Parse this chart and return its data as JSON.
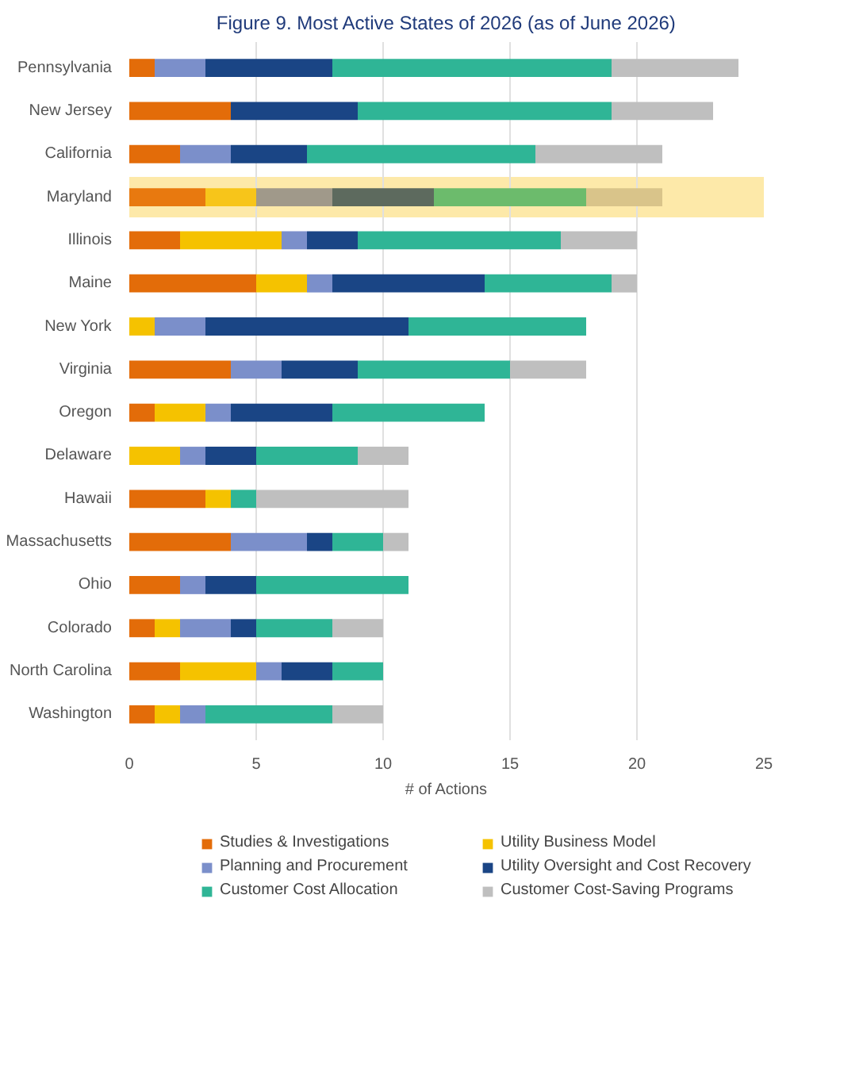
{
  "chart_data": {
    "type": "bar",
    "orientation": "horizontal",
    "stacked": true,
    "title": "Figure 9. Most Active States of 2026 (as of June 2026)",
    "xlabel": "# of Actions",
    "categories": [
      "Pennsylvania",
      "New Jersey",
      "California",
      "Maryland",
      "Illinois",
      "Maine",
      "New York",
      "Virginia",
      "Oregon",
      "Delaware",
      "Hawaii",
      "Massachusetts",
      "Ohio",
      "Colorado",
      "North Carolina",
      "Washington"
    ],
    "series": [
      {
        "name": "Studies & Investigations",
        "color": "#e36c09",
        "colors": [
          "#e36c09",
          "#e36c09",
          "#e36c09",
          "#e8790f",
          "#e36c09",
          "#e36c09",
          "#e36c09",
          "#e36c09",
          "#e36c09",
          "#e36c09",
          "#e36c09",
          "#e36c09",
          "#e36c09",
          "#e36c09",
          "#e36c09",
          "#e36c09"
        ],
        "values": [
          1,
          4,
          2,
          3,
          2,
          5,
          0,
          4,
          1,
          0,
          3,
          4,
          2,
          1,
          2,
          1
        ]
      },
      {
        "name": "Utility Business Model",
        "color": "#f5c200",
        "colors": [
          "#f5c200",
          "#f5c200",
          "#f5c200",
          "#f7c51a",
          "#f5c200",
          "#f5c200",
          "#f5c200",
          "#f5c200",
          "#f5c200",
          "#f5c200",
          "#f5c200",
          "#f5c200",
          "#f5c200",
          "#f5c200",
          "#f5c200",
          "#f5c200"
        ],
        "values": [
          0,
          0,
          0,
          2,
          4,
          2,
          1,
          0,
          2,
          2,
          1,
          0,
          0,
          1,
          3,
          1
        ]
      },
      {
        "name": "Planning and Procurement",
        "color": "#7b8fca",
        "colors": [
          "#7b8fca",
          "#7b8fca",
          "#7b8fca",
          "#a0998a",
          "#7b8fca",
          "#7b8fca",
          "#7b8fca",
          "#7b8fca",
          "#7b8fca",
          "#7b8fca",
          "#7b8fca",
          "#7b8fca",
          "#7b8fca",
          "#7b8fca",
          "#7b8fca",
          "#7b8fca"
        ],
        "values": [
          2,
          0,
          2,
          3,
          1,
          1,
          2,
          2,
          1,
          1,
          0,
          3,
          1,
          2,
          1,
          1
        ]
      },
      {
        "name": "Utility Oversight and Cost Recovery",
        "color": "#1a4585",
        "colors": [
          "#1a4585",
          "#1a4585",
          "#1a4585",
          "#5d6a5e",
          "#1a4585",
          "#1a4585",
          "#1a4585",
          "#1a4585",
          "#1a4585",
          "#1a4585",
          "#1a4585",
          "#1a4585",
          "#1a4585",
          "#1a4585",
          "#1a4585",
          "#1a4585"
        ],
        "values": [
          5,
          5,
          3,
          4,
          2,
          6,
          8,
          3,
          4,
          2,
          0,
          1,
          2,
          1,
          2,
          0
        ]
      },
      {
        "name": "Customer Cost Allocation",
        "color": "#2fb596",
        "colors": [
          "#2fb596",
          "#2fb596",
          "#2fb596",
          "#6cbb6c",
          "#2fb596",
          "#2fb596",
          "#2fb596",
          "#2fb596",
          "#2fb596",
          "#2fb596",
          "#2fb596",
          "#2fb596",
          "#2fb596",
          "#2fb596",
          "#2fb596",
          "#2fb596"
        ],
        "values": [
          11,
          10,
          9,
          6,
          8,
          5,
          7,
          6,
          6,
          4,
          1,
          2,
          6,
          3,
          2,
          5
        ]
      },
      {
        "name": "Customer Cost-Saving Programs",
        "color": "#bfbfbf",
        "colors": [
          "#bfbfbf",
          "#bfbfbf",
          "#bfbfbf",
          "#d9c48a",
          "#bfbfbf",
          "#bfbfbf",
          "#bfbfbf",
          "#bfbfbf",
          "#bfbfbf",
          "#bfbfbf",
          "#bfbfbf",
          "#bfbfbf",
          "#bfbfbf",
          "#bfbfbf",
          "#bfbfbf",
          "#bfbfbf"
        ],
        "values": [
          5,
          4,
          5,
          3,
          3,
          1,
          0,
          3,
          0,
          2,
          6,
          1,
          0,
          2,
          0,
          2
        ]
      }
    ],
    "bands": [
      {
        "axis": "y",
        "from": "Maryland",
        "to": "Maryland",
        "color": "#fde9a9"
      }
    ],
    "xlim": [
      0,
      25
    ],
    "xticks": [
      0,
      5,
      10,
      15,
      20,
      25
    ],
    "grid": "x",
    "legend": "bottom"
  }
}
